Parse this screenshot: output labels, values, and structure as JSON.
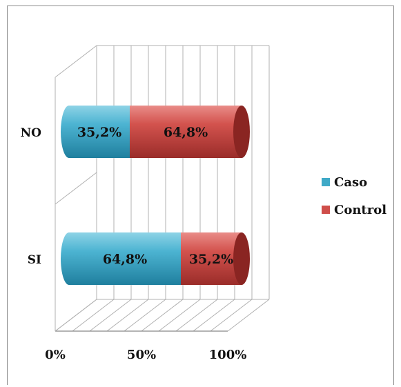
{
  "chart_data": {
    "type": "bar",
    "orientation": "horizontal",
    "stacked": "100%",
    "style": "3d-cylinder",
    "categories": [
      "NO",
      "SI"
    ],
    "series": [
      {
        "name": "Caso",
        "values": [
          35.2,
          64.8
        ],
        "labels": [
          "35,2%",
          "64,8%"
        ],
        "color": "#3FA9C7"
      },
      {
        "name": "Control",
        "values": [
          64.8,
          35.2
        ],
        "labels": [
          "64,8%",
          "35,2%"
        ],
        "color": "#CF4E4A"
      }
    ],
    "x_ticks": [
      "0%",
      "50%",
      "100%"
    ],
    "xlim": [
      0,
      100
    ],
    "grid": true,
    "legend_position": "right"
  }
}
